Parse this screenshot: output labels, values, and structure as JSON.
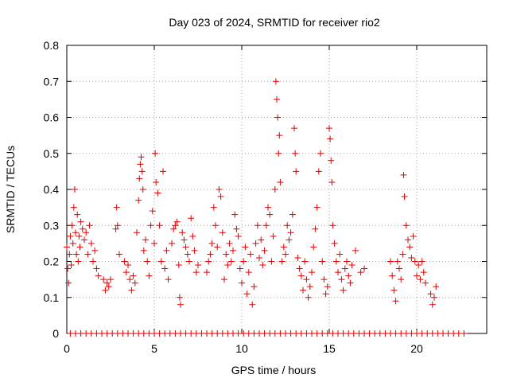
{
  "chart_data": {
    "type": "scatter",
    "title": "Day 023 of 2024, SRMTID for receiver rio2",
    "xlabel": "GPS time / hours",
    "ylabel": "SRMTID / TECUs",
    "xlim": [
      0,
      24
    ],
    "ylim": [
      0,
      0.8
    ],
    "xticks": [
      0,
      5,
      10,
      15,
      20
    ],
    "xtick_labels": [
      "0",
      "5",
      "10",
      "15",
      "20"
    ],
    "yticks": [
      0,
      0.1,
      0.2,
      0.3,
      0.4,
      0.5,
      0.6,
      0.7,
      0.8
    ],
    "ytick_labels": [
      "0",
      "0.1",
      "0.2",
      "0.3",
      "0.4",
      "0.5",
      "0.6",
      "0.7",
      "0.8"
    ],
    "grid": true,
    "marker": "plus",
    "color": "#e00000",
    "series": [
      {
        "name": "SRMTID",
        "points": [
          [
            0.0,
            0.24
          ],
          [
            0.05,
            0.18
          ],
          [
            0.1,
            0.14
          ],
          [
            0.15,
            0.22
          ],
          [
            0.2,
            0.27
          ],
          [
            0.25,
            0.19
          ],
          [
            0.3,
            0.3
          ],
          [
            0.35,
            0.25
          ],
          [
            0.4,
            0.35
          ],
          [
            0.45,
            0.4
          ],
          [
            0.5,
            0.28
          ],
          [
            0.55,
            0.22
          ],
          [
            0.6,
            0.33
          ],
          [
            0.65,
            0.2
          ],
          [
            0.7,
            0.27
          ],
          [
            0.75,
            0.24
          ],
          [
            0.8,
            0.31
          ],
          [
            0.9,
            0.29
          ],
          [
            1.0,
            0.26
          ],
          [
            1.1,
            0.28
          ],
          [
            1.2,
            0.22
          ],
          [
            1.3,
            0.3
          ],
          [
            1.4,
            0.25
          ],
          [
            1.5,
            0.2
          ],
          [
            1.6,
            0.23
          ],
          [
            1.7,
            0.18
          ],
          [
            1.8,
            0.16
          ],
          [
            2.1,
            0.15
          ],
          [
            2.2,
            0.12
          ],
          [
            2.3,
            0.14
          ],
          [
            2.4,
            0.13
          ],
          [
            2.5,
            0.15
          ],
          [
            2.8,
            0.29
          ],
          [
            2.85,
            0.35
          ],
          [
            2.9,
            0.3
          ],
          [
            3.0,
            0.22
          ],
          [
            3.3,
            0.2
          ],
          [
            3.4,
            0.17
          ],
          [
            3.5,
            0.19
          ],
          [
            3.6,
            0.15
          ],
          [
            3.7,
            0.12
          ],
          [
            3.8,
            0.16
          ],
          [
            3.9,
            0.14
          ],
          [
            4.0,
            0.28
          ],
          [
            4.1,
            0.37
          ],
          [
            4.15,
            0.43
          ],
          [
            4.2,
            0.47
          ],
          [
            4.25,
            0.49
          ],
          [
            4.3,
            0.45
          ],
          [
            4.35,
            0.4
          ],
          [
            4.4,
            0.23
          ],
          [
            4.5,
            0.26
          ],
          [
            4.6,
            0.2
          ],
          [
            4.7,
            0.16
          ],
          [
            4.8,
            0.3
          ],
          [
            4.9,
            0.34
          ],
          [
            5.0,
            0.25
          ],
          [
            5.05,
            0.5
          ],
          [
            5.1,
            0.42
          ],
          [
            5.2,
            0.39
          ],
          [
            5.3,
            0.3
          ],
          [
            5.4,
            0.2
          ],
          [
            5.5,
            0.45
          ],
          [
            5.6,
            0.18
          ],
          [
            5.7,
            0.23
          ],
          [
            5.8,
            0.15
          ],
          [
            6.0,
            0.25
          ],
          [
            6.1,
            0.29
          ],
          [
            6.2,
            0.3
          ],
          [
            6.3,
            0.31
          ],
          [
            6.4,
            0.19
          ],
          [
            6.45,
            0.1
          ],
          [
            6.5,
            0.08
          ],
          [
            6.6,
            0.28
          ],
          [
            6.7,
            0.26
          ],
          [
            6.8,
            0.24
          ],
          [
            6.9,
            0.22
          ],
          [
            7.0,
            0.2
          ],
          [
            7.1,
            0.32
          ],
          [
            7.2,
            0.27
          ],
          [
            7.3,
            0.23
          ],
          [
            7.4,
            0.17
          ],
          [
            7.5,
            0.19
          ],
          [
            8.0,
            0.17
          ],
          [
            8.1,
            0.2
          ],
          [
            8.2,
            0.22
          ],
          [
            8.3,
            0.25
          ],
          [
            8.4,
            0.35
          ],
          [
            8.5,
            0.3
          ],
          [
            8.6,
            0.24
          ],
          [
            8.7,
            0.4
          ],
          [
            8.8,
            0.38
          ],
          [
            8.9,
            0.28
          ],
          [
            9.0,
            0.15
          ],
          [
            9.1,
            0.22
          ],
          [
            9.2,
            0.19
          ],
          [
            9.3,
            0.25
          ],
          [
            9.4,
            0.2
          ],
          [
            9.5,
            0.23
          ],
          [
            9.6,
            0.33
          ],
          [
            9.7,
            0.29
          ],
          [
            9.8,
            0.27
          ],
          [
            9.9,
            0.18
          ],
          [
            10.0,
            0.14
          ],
          [
            10.1,
            0.2
          ],
          [
            10.2,
            0.24
          ],
          [
            10.3,
            0.11
          ],
          [
            10.4,
            0.17
          ],
          [
            10.5,
            0.22
          ],
          [
            10.6,
            0.08
          ],
          [
            10.7,
            0.13
          ],
          [
            10.8,
            0.25
          ],
          [
            10.9,
            0.3
          ],
          [
            11.0,
            0.21
          ],
          [
            11.1,
            0.26
          ],
          [
            11.2,
            0.19
          ],
          [
            11.3,
            0.23
          ],
          [
            11.4,
            0.3
          ],
          [
            11.5,
            0.35
          ],
          [
            11.6,
            0.33
          ],
          [
            11.7,
            0.2
          ],
          [
            11.8,
            0.27
          ],
          [
            11.9,
            0.4
          ],
          [
            11.95,
            0.7
          ],
          [
            12.0,
            0.65
          ],
          [
            12.05,
            0.6
          ],
          [
            12.1,
            0.5
          ],
          [
            12.15,
            0.55
          ],
          [
            12.2,
            0.42
          ],
          [
            12.3,
            0.2
          ],
          [
            12.4,
            0.24
          ],
          [
            12.5,
            0.22
          ],
          [
            12.6,
            0.3
          ],
          [
            12.7,
            0.26
          ],
          [
            12.8,
            0.28
          ],
          [
            12.9,
            0.33
          ],
          [
            13.0,
            0.57
          ],
          [
            13.05,
            0.5
          ],
          [
            13.1,
            0.45
          ],
          [
            13.2,
            0.21
          ],
          [
            13.3,
            0.18
          ],
          [
            13.4,
            0.16
          ],
          [
            13.5,
            0.12
          ],
          [
            13.6,
            0.2
          ],
          [
            13.7,
            0.15
          ],
          [
            13.8,
            0.1
          ],
          [
            13.9,
            0.13
          ],
          [
            14.0,
            0.17
          ],
          [
            14.1,
            0.24
          ],
          [
            14.2,
            0.29
          ],
          [
            14.3,
            0.35
          ],
          [
            14.4,
            0.45
          ],
          [
            14.5,
            0.5
          ],
          [
            14.6,
            0.2
          ],
          [
            14.7,
            0.15
          ],
          [
            14.8,
            0.11
          ],
          [
            14.9,
            0.13
          ],
          [
            15.0,
            0.57
          ],
          [
            15.05,
            0.54
          ],
          [
            15.1,
            0.48
          ],
          [
            15.15,
            0.42
          ],
          [
            15.2,
            0.3
          ],
          [
            15.3,
            0.25
          ],
          [
            15.4,
            0.2
          ],
          [
            15.5,
            0.17
          ],
          [
            15.6,
            0.22
          ],
          [
            15.7,
            0.15
          ],
          [
            15.8,
            0.12
          ],
          [
            15.9,
            0.18
          ],
          [
            16.0,
            0.2
          ],
          [
            16.1,
            0.16
          ],
          [
            16.2,
            0.14
          ],
          [
            16.3,
            0.19
          ],
          [
            16.5,
            0.23
          ],
          [
            16.8,
            0.17
          ],
          [
            17.0,
            0.18
          ],
          [
            18.5,
            0.2
          ],
          [
            18.6,
            0.16
          ],
          [
            18.7,
            0.12
          ],
          [
            18.8,
            0.09
          ],
          [
            18.9,
            0.2
          ],
          [
            19.0,
            0.18
          ],
          [
            19.1,
            0.15
          ],
          [
            19.2,
            0.22
          ],
          [
            19.25,
            0.44
          ],
          [
            19.3,
            0.38
          ],
          [
            19.4,
            0.3
          ],
          [
            19.5,
            0.26
          ],
          [
            19.6,
            0.24
          ],
          [
            19.7,
            0.21
          ],
          [
            19.8,
            0.27
          ],
          [
            19.9,
            0.2
          ],
          [
            20.0,
            0.16
          ],
          [
            20.1,
            0.19
          ],
          [
            20.2,
            0.15
          ],
          [
            20.3,
            0.2
          ],
          [
            20.4,
            0.17
          ],
          [
            20.5,
            0.14
          ],
          [
            20.8,
            0.11
          ],
          [
            20.9,
            0.08
          ],
          [
            21.0,
            0.1
          ],
          [
            21.1,
            0.13
          ],
          [
            0.2,
            0
          ],
          [
            0.5,
            0
          ],
          [
            0.8,
            0
          ],
          [
            1.1,
            0
          ],
          [
            1.4,
            0
          ],
          [
            1.7,
            0
          ],
          [
            2.0,
            0
          ],
          [
            2.3,
            0
          ],
          [
            2.6,
            0
          ],
          [
            2.9,
            0
          ],
          [
            3.2,
            0
          ],
          [
            3.5,
            0
          ],
          [
            3.8,
            0
          ],
          [
            4.1,
            0
          ],
          [
            4.4,
            0
          ],
          [
            4.7,
            0
          ],
          [
            5.0,
            0
          ],
          [
            5.3,
            0
          ],
          [
            5.6,
            0
          ],
          [
            5.9,
            0
          ],
          [
            6.2,
            0
          ],
          [
            6.5,
            0
          ],
          [
            6.8,
            0
          ],
          [
            7.1,
            0
          ],
          [
            7.4,
            0
          ],
          [
            7.7,
            0
          ],
          [
            8.0,
            0
          ],
          [
            8.3,
            0
          ],
          [
            8.6,
            0
          ],
          [
            8.9,
            0
          ],
          [
            9.2,
            0
          ],
          [
            9.5,
            0
          ],
          [
            9.8,
            0
          ],
          [
            10.1,
            0
          ],
          [
            10.4,
            0
          ],
          [
            10.7,
            0
          ],
          [
            11.0,
            0
          ],
          [
            11.3,
            0
          ],
          [
            11.6,
            0
          ],
          [
            11.9,
            0
          ],
          [
            12.2,
            0
          ],
          [
            12.5,
            0
          ],
          [
            12.8,
            0
          ],
          [
            13.1,
            0
          ],
          [
            13.4,
            0
          ],
          [
            13.7,
            0
          ],
          [
            14.0,
            0
          ],
          [
            14.3,
            0
          ],
          [
            14.6,
            0
          ],
          [
            14.9,
            0
          ],
          [
            15.2,
            0
          ],
          [
            15.5,
            0
          ],
          [
            15.8,
            0
          ],
          [
            16.1,
            0
          ],
          [
            16.4,
            0
          ],
          [
            16.7,
            0
          ],
          [
            17.0,
            0
          ],
          [
            17.3,
            0
          ],
          [
            17.6,
            0
          ],
          [
            17.9,
            0
          ],
          [
            18.2,
            0
          ],
          [
            18.5,
            0
          ],
          [
            18.8,
            0
          ],
          [
            19.1,
            0
          ],
          [
            19.4,
            0
          ],
          [
            19.7,
            0
          ],
          [
            20.0,
            0
          ],
          [
            20.3,
            0
          ],
          [
            20.6,
            0
          ],
          [
            20.9,
            0
          ],
          [
            21.2,
            0
          ],
          [
            21.5,
            0
          ],
          [
            21.8,
            0
          ],
          [
            22.1,
            0
          ],
          [
            22.4,
            0
          ],
          [
            22.7,
            0
          ]
        ]
      }
    ]
  }
}
